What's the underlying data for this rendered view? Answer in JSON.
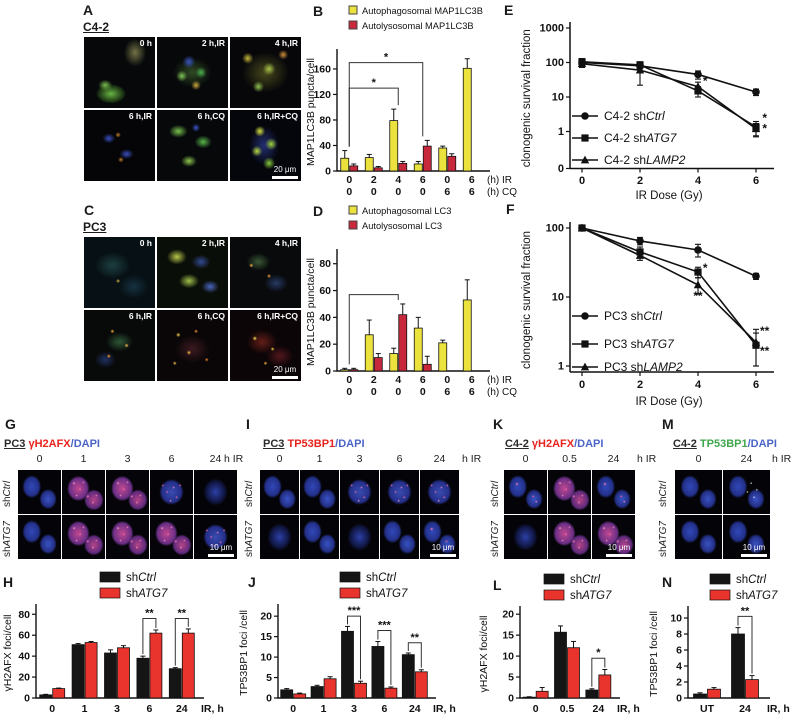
{
  "palette": {
    "bar_yellow": "#ece23d",
    "bar_crimson": "#c8283c",
    "bar_black": "#151515",
    "bar_red": "#e9332d",
    "title_red": "#e8231e",
    "title_blue": "#4b64c8",
    "title_green": "#3fa64d",
    "ink": "#111111"
  },
  "micro_panels": {
    "A": {
      "letter": "A",
      "cell_line": "C4-2",
      "tile_labels": [
        [
          "0 h",
          "2 h,IR",
          "4 h,IR"
        ],
        [
          "6 h,IR",
          "6 h,CQ",
          "6 h,IR+CQ"
        ]
      ],
      "looks": [
        [
          "lk-a1",
          "lk-a2",
          "lk-a3"
        ],
        [
          "lk-a4",
          "lk-a5",
          "lk-a6"
        ]
      ],
      "scale_bar": {
        "row": 1,
        "col": 2,
        "text": "20 μm"
      }
    },
    "C": {
      "letter": "C",
      "cell_line": "PC3",
      "tile_labels": [
        [
          "0 h",
          "2 h,IR",
          "4 h,IR"
        ],
        [
          "6 h,IR",
          "6 h,CQ",
          "6 h,IR+CQ"
        ]
      ],
      "looks": [
        [
          "lk-c1",
          "lk-c2",
          "lk-c3"
        ],
        [
          "lk-c4",
          "lk-c5",
          "lk-c6"
        ]
      ],
      "scale_bar": {
        "row": 1,
        "col": 2,
        "text": "20 μm"
      }
    },
    "G": {
      "letter": "G",
      "title": [
        {
          "t": "PC3",
          "u": 1,
          "c": "#2a2a2a"
        },
        {
          "t": " "
        },
        {
          "t": "γH2AFX",
          "c": "#e8231e"
        },
        {
          "t": "/DAPI",
          "c": "#4b64c8"
        }
      ],
      "col_headers": [
        "0",
        "1",
        "3",
        "6",
        "24"
      ],
      "col_suffix": "h IR",
      "row_labels": [
        {
          "pre": "sh",
          "it": "Ctrl"
        },
        {
          "pre": "sh",
          "it": "ATG7"
        }
      ],
      "looks": [
        [
          "lk-nb",
          "lk-nrh",
          "lk-nrh",
          "lk-nrm",
          "lk-nbs"
        ],
        [
          "lk-nb",
          "lk-nrh",
          "lk-nrh",
          "lk-nrh",
          "lk-nrm"
        ]
      ],
      "scale_bar": {
        "row": 1,
        "col": 4,
        "text": "10 μm"
      }
    },
    "I": {
      "letter": "I",
      "title": [
        {
          "t": "PC3",
          "u": 1,
          "c": "#2a2a2a"
        },
        {
          "t": " "
        },
        {
          "t": "TP53BP1",
          "c": "#e8231e"
        },
        {
          "t": "/DAPI",
          "c": "#4b64c8"
        }
      ],
      "col_headers": [
        "0",
        "1",
        "3",
        "6",
        "24"
      ],
      "col_suffix": "h IR",
      "row_labels": [
        {
          "pre": "sh",
          "it": "Ctrl"
        },
        {
          "pre": "sh",
          "it": "ATG7"
        }
      ],
      "looks": [
        [
          "lk-nb",
          "lk-nb",
          "lk-nrm",
          "lk-nrm",
          "lk-nrm"
        ],
        [
          "lk-nbs",
          "lk-nb",
          "lk-nbs",
          "lk-nb",
          "lk-nrf"
        ]
      ],
      "scale_bar": {
        "row": 1,
        "col": 4,
        "text": "10 μm"
      }
    },
    "K": {
      "letter": "K",
      "title": [
        {
          "t": "C4-2",
          "u": 1,
          "c": "#2a2a2a"
        },
        {
          "t": " "
        },
        {
          "t": "γH2AFX",
          "c": "#e8231e"
        },
        {
          "t": "/DAPI",
          "c": "#4b64c8"
        }
      ],
      "col_headers": [
        "0",
        "0.5",
        "24"
      ],
      "col_suffix": "h IR",
      "row_labels": [
        {
          "pre": "sh",
          "it": "Ctrl"
        },
        {
          "pre": "sh",
          "it": "ATG7"
        }
      ],
      "looks": [
        [
          "lk-nrf",
          "lk-nrh",
          "lk-nrf"
        ],
        [
          "lk-nbs",
          "lk-nrh",
          "lk-nrh"
        ]
      ],
      "scale_bar": {
        "row": 1,
        "col": 2,
        "text": "10 μm"
      }
    },
    "M": {
      "letter": "M",
      "title": [
        {
          "t": "C4-2",
          "u": 1,
          "c": "#2a2a2a"
        },
        {
          "t": " "
        },
        {
          "t": "TP53BP1",
          "c": "#3fa64d"
        },
        {
          "t": "/DAPI",
          "c": "#4b64c8"
        }
      ],
      "col_headers": [
        "0",
        "24"
      ],
      "col_suffix": "h IR",
      "row_labels": [
        {
          "pre": "sh",
          "it": "Ctrl"
        },
        {
          "pre": "sh",
          "it": "ATG7"
        }
      ],
      "looks": [
        [
          "lk-nb",
          "lk-ngd"
        ],
        [
          "lk-nb",
          "lk-nb"
        ]
      ],
      "scale_bar": {
        "row": 1,
        "col": 1,
        "text": "10 μm"
      }
    }
  },
  "chart_data": {
    "B": {
      "letter": "B",
      "type": "bar",
      "ylabel": "MAP1LC3B puncta/cell",
      "ymax": 185,
      "yticks": [
        0,
        40,
        80,
        120,
        160
      ],
      "cat_rows": [
        [
          "0",
          "2",
          "4",
          "6",
          "0",
          "6"
        ],
        [
          "0",
          "0",
          "0",
          "0",
          "6",
          "6"
        ]
      ],
      "xsuffixes": [
        "(h) IR",
        "(h) CQ"
      ],
      "legend": [
        {
          "label": "Autophagosomal MAP1LC3B",
          "color": "#ece23d"
        },
        {
          "label": "Autolysosomal MAP1LC3B",
          "color": "#c8283c"
        }
      ],
      "series": [
        {
          "name": "Autophagosomal MAP1LC3B",
          "color": "#ece23d",
          "values": [
            20,
            21,
            79,
            11,
            36,
            161
          ],
          "errors": [
            12,
            5,
            18,
            4,
            3,
            15
          ]
        },
        {
          "name": "Autolysosomal MAP1LC3B",
          "color": "#c8283c",
          "values": [
            8,
            5,
            12,
            39,
            23,
            0
          ],
          "errors": [
            3,
            2,
            3,
            9,
            4,
            0
          ]
        }
      ],
      "sig": [
        {
          "from": 0,
          "to": 2,
          "level": 130,
          "stars": "*"
        },
        {
          "from": 0,
          "to": 3,
          "level": 170,
          "stars": "*"
        }
      ]
    },
    "D": {
      "letter": "D",
      "type": "bar",
      "ylabel": "MAP1LC3B puncta/cell",
      "ymax": 88,
      "yticks": [
        0,
        20,
        40,
        60,
        80
      ],
      "cat_rows": [
        [
          "0",
          "2",
          "4",
          "6",
          "0",
          "6"
        ],
        [
          "0",
          "0",
          "0",
          "0",
          "6",
          "6"
        ]
      ],
      "xsuffixes": [
        "(h) IR",
        "(h) CQ"
      ],
      "legend": [
        {
          "label": "Autophagosomal LC3",
          "color": "#ece23d"
        },
        {
          "label": "Autolysosomal LC3",
          "color": "#c8283c"
        }
      ],
      "series": [
        {
          "name": "Autophagosomal LC3",
          "color": "#ece23d",
          "values": [
            1,
            27,
            13,
            32,
            21,
            53
          ],
          "errors": [
            1,
            11,
            4,
            8,
            2,
            15
          ]
        },
        {
          "name": "Autolysosomal LC3",
          "color": "#c8283c",
          "values": [
            1,
            10,
            42,
            5,
            0,
            0
          ],
          "errors": [
            1,
            3,
            8,
            6,
            0,
            0
          ]
        }
      ],
      "sig": [
        {
          "from": 0,
          "to": 2,
          "level": 57,
          "stars": ""
        }
      ]
    },
    "E": {
      "letter": "E",
      "type": "line-log",
      "ylabel": "clonogenic survival fraction",
      "yticks": [
        "1000",
        "100",
        "10",
        "1"
      ],
      "zero_label": "0",
      "xticks": [
        "0",
        "2",
        "4",
        "6"
      ],
      "xlabel": "IR Dose (Gy)",
      "series": [
        {
          "marker": "circle",
          "legend_pre": "C4-2 sh",
          "legend_it": "Ctrl",
          "x": [
            0,
            2,
            4,
            6
          ],
          "y": [
            100,
            80,
            45,
            14
          ],
          "e": [
            25,
            15,
            12,
            3
          ]
        },
        {
          "marker": "square",
          "legend_pre": "C4-2 sh",
          "legend_it": "ATG7",
          "x": [
            0,
            2,
            4,
            6
          ],
          "y": [
            105,
            85,
            15,
            1.35
          ],
          "e": [
            25,
            20,
            5,
            0.6
          ]
        },
        {
          "marker": "triangle",
          "legend_pre": "C4-2 sh",
          "legend_it": "LAMP2",
          "x": [
            0,
            2,
            4,
            6
          ],
          "y": [
            92,
            60,
            20,
            1.2
          ],
          "e": [
            20,
            38,
            7,
            0.5
          ]
        }
      ],
      "annotations": [
        {
          "x": 4.25,
          "y": 22,
          "t": "*"
        },
        {
          "x": 6.3,
          "y": 1.9,
          "t": "*"
        },
        {
          "x": 6.3,
          "y": 0.95,
          "t": "*"
        }
      ]
    },
    "F": {
      "letter": "F",
      "type": "line-log",
      "ylabel": "clonogenic survival fraction",
      "yticks": [
        "100",
        "10",
        "1"
      ],
      "zero_label": "",
      "xticks": [
        "0",
        "2",
        "4",
        "6"
      ],
      "xlabel": "IR Dose (Gy)",
      "series": [
        {
          "marker": "circle",
          "legend_pre": "PC3 sh",
          "legend_it": "Ctrl",
          "x": [
            0,
            2,
            4,
            6
          ],
          "y": [
            100,
            65,
            48,
            20
          ],
          "e": [
            5,
            8,
            10,
            2
          ]
        },
        {
          "marker": "square",
          "legend_pre": "PC3 sh",
          "legend_it": "ATG7",
          "x": [
            0,
            2,
            4,
            6
          ],
          "y": [
            100,
            45,
            23,
            2.0
          ],
          "e": [
            5,
            8,
            4,
            1.0
          ]
        },
        {
          "marker": "triangle",
          "legend_pre": "PC3 sh",
          "legend_it": "LAMP2",
          "x": [
            0,
            2,
            4,
            6
          ],
          "y": [
            100,
            40,
            15,
            2.2
          ],
          "e": [
            5,
            6,
            4,
            1.2
          ]
        }
      ],
      "annotations": [
        {
          "x": 4.25,
          "y": 23,
          "t": "*"
        },
        {
          "x": 4.0,
          "y": 9.0,
          "t": "**"
        },
        {
          "x": 6.3,
          "y": 2.8,
          "t": "**"
        },
        {
          "x": 6.3,
          "y": 1.45,
          "t": "**"
        }
      ]
    },
    "H": {
      "letter": "H",
      "type": "bar",
      "ylabel": "γH2AFX foci/cell",
      "ymax": 86,
      "yticks": [
        0,
        20,
        40,
        60,
        80
      ],
      "categories": [
        "0",
        "1",
        "3",
        "6",
        "24"
      ],
      "xsuffix": "IR, h",
      "legend": [
        {
          "pre": "sh",
          "it": "Ctrl",
          "color": "#151515"
        },
        {
          "pre": "sh",
          "it": "ATG7",
          "color": "#e9332d"
        }
      ],
      "series": [
        {
          "name": "shCtrl",
          "color": "#151515",
          "values": [
            3,
            51,
            43,
            38,
            28
          ],
          "errors": [
            0.5,
            1,
            3,
            2,
            1
          ]
        },
        {
          "name": "shATG7",
          "color": "#e9332d",
          "values": [
            9,
            53,
            48,
            62,
            62
          ],
          "errors": [
            0.5,
            1,
            2,
            3,
            4
          ]
        }
      ],
      "sig": [
        {
          "group": 3,
          "stars": "**",
          "level": 76
        },
        {
          "group": 4,
          "stars": "**",
          "level": 76
        }
      ]
    },
    "J": {
      "letter": "J",
      "type": "bar",
      "ylabel": "TP53BP1 foci /cell",
      "ymax": 22,
      "yticks": [
        0,
        5,
        10,
        15,
        20
      ],
      "categories": [
        "0",
        "1",
        "3",
        "6",
        "24"
      ],
      "xsuffix": "IR, h",
      "legend": [
        {
          "pre": "sh",
          "it": "Ctrl",
          "color": "#151515"
        },
        {
          "pre": "sh",
          "it": "ATG7",
          "color": "#e9332d"
        }
      ],
      "series": [
        {
          "name": "shCtrl",
          "color": "#151515",
          "values": [
            2,
            2.8,
            16.3,
            12.6,
            10.6
          ],
          "errors": [
            0.3,
            0.3,
            1.2,
            1.2,
            0.4
          ]
        },
        {
          "name": "shATG7",
          "color": "#e9332d",
          "values": [
            1,
            4.7,
            3.6,
            2.4,
            6.4
          ],
          "errors": [
            0.2,
            0.5,
            0.5,
            0.3,
            0.5
          ]
        }
      ],
      "sig": [
        {
          "group": 2,
          "stars": "***",
          "level": 20
        },
        {
          "group": 3,
          "stars": "***",
          "level": 16.5
        },
        {
          "group": 4,
          "stars": "**",
          "level": 13.5
        }
      ]
    },
    "L": {
      "letter": "L",
      "type": "bar",
      "ylabel": "γH2AFX foci/cell",
      "ymax": 21,
      "yticks": [
        0,
        5,
        10,
        15,
        20
      ],
      "categories": [
        "0",
        "0.5",
        "24"
      ],
      "xsuffix": "IR, h",
      "legend": [
        {
          "pre": "sh",
          "it": "Ctrl",
          "color": "#151515"
        },
        {
          "pre": "sh",
          "it": "ATG7",
          "color": "#e9332d"
        }
      ],
      "series": [
        {
          "name": "shCtrl",
          "color": "#151515",
          "values": [
            0.2,
            15.7,
            1.9
          ],
          "errors": [
            0.1,
            1.5,
            0.3
          ]
        },
        {
          "name": "shATG7",
          "color": "#e9332d",
          "values": [
            1.6,
            12,
            5.5
          ],
          "errors": [
            0.9,
            1.5,
            1.3
          ]
        }
      ],
      "sig": [
        {
          "group": 2,
          "stars": "*",
          "level": 9.5
        }
      ]
    },
    "N": {
      "letter": "N",
      "type": "bar",
      "ylabel": "TP53BP1 foci /cell",
      "ymax": 11,
      "yticks": [
        0,
        2,
        4,
        6,
        8,
        10
      ],
      "categories": [
        "UT",
        "24"
      ],
      "xsuffix": "IR, h",
      "legend": [
        {
          "pre": "sh",
          "it": "Ctrl",
          "color": "#151515"
        },
        {
          "pre": "sh",
          "it": "ATG7",
          "color": "#e9332d"
        }
      ],
      "series": [
        {
          "name": "shCtrl",
          "color": "#151515",
          "values": [
            0.5,
            8
          ],
          "errors": [
            0.15,
            0.8
          ]
        },
        {
          "name": "shATG7",
          "color": "#e9332d",
          "values": [
            1.1,
            2.3
          ],
          "errors": [
            0.2,
            0.5
          ]
        }
      ],
      "sig": [
        {
          "group": 1,
          "stars": "**",
          "level": 10.2
        }
      ]
    }
  }
}
